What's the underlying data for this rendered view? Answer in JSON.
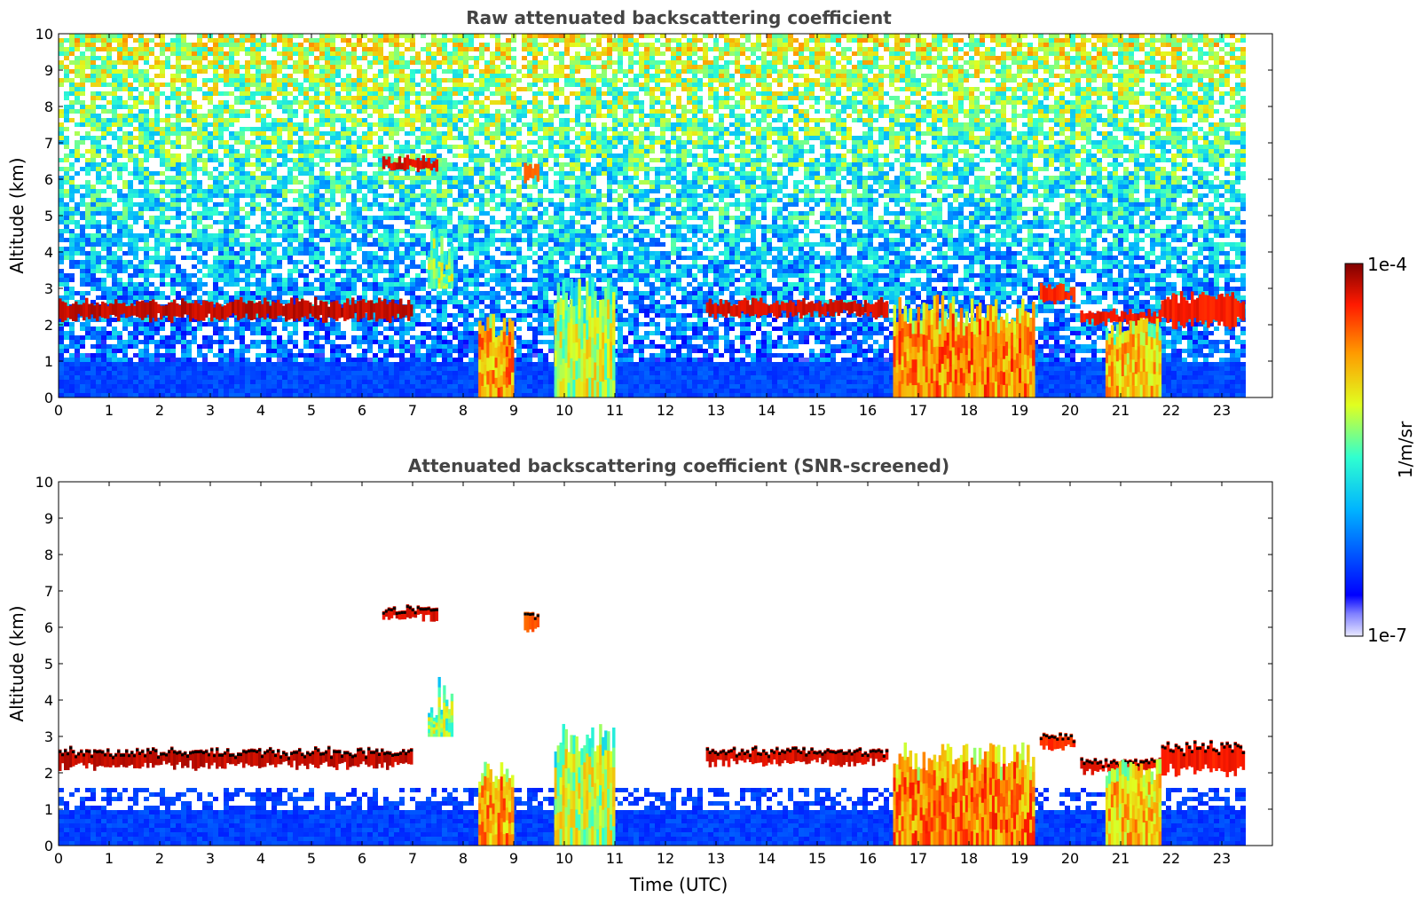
{
  "chart_data": [
    {
      "type": "heatmap",
      "title": "Raw attenuated backscattering coefficient",
      "xlabel": "",
      "ylabel": "Altitude (km)",
      "xlim": [
        0,
        24
      ],
      "ylim": [
        0,
        10
      ],
      "x_ticks": [
        0,
        1,
        2,
        3,
        4,
        5,
        6,
        7,
        8,
        9,
        10,
        11,
        12,
        13,
        14,
        15,
        16,
        17,
        18,
        19,
        20,
        21,
        22,
        23
      ],
      "y_ticks": [
        0,
        1,
        2,
        3,
        4,
        5,
        6,
        7,
        8,
        9,
        10
      ],
      "data_end_time": 23.45,
      "background": "noisy",
      "features": [
        {
          "kind": "layer",
          "t0": 0.0,
          "t1": 7.0,
          "alt0": 2.1,
          "alt1": 2.7,
          "value": 0.97
        },
        {
          "kind": "layer",
          "t0": 6.4,
          "t1": 7.5,
          "alt0": 6.2,
          "alt1": 6.6,
          "value": 0.95
        },
        {
          "kind": "layer",
          "t0": 9.2,
          "t1": 9.5,
          "alt0": 5.9,
          "alt1": 6.5,
          "value": 0.85
        },
        {
          "kind": "layer",
          "t0": 12.8,
          "t1": 16.4,
          "alt0": 2.2,
          "alt1": 2.7,
          "value": 0.95
        },
        {
          "kind": "layer",
          "t0": 19.4,
          "t1": 20.1,
          "alt0": 2.6,
          "alt1": 3.1,
          "value": 0.9
        },
        {
          "kind": "layer",
          "t0": 20.2,
          "t1": 21.8,
          "alt0": 2.0,
          "alt1": 2.4,
          "value": 0.93
        },
        {
          "kind": "layer",
          "t0": 21.8,
          "t1": 23.45,
          "alt0": 1.9,
          "alt1": 2.9,
          "value": 0.92
        },
        {
          "kind": "column",
          "t0": 8.3,
          "t1": 9.0,
          "alt0": 0.0,
          "alt1": 2.2,
          "value": 0.75
        },
        {
          "kind": "column",
          "t0": 9.8,
          "t1": 11.0,
          "alt0": 0.0,
          "alt1": 3.2,
          "value": 0.6
        },
        {
          "kind": "column",
          "t0": 16.5,
          "t1": 19.3,
          "alt0": 0.0,
          "alt1": 2.7,
          "value": 0.78
        },
        {
          "kind": "column",
          "t0": 20.7,
          "t1": 21.8,
          "alt0": 0.0,
          "alt1": 2.3,
          "value": 0.7
        },
        {
          "kind": "column",
          "t0": 7.3,
          "t1": 7.8,
          "alt0": 3.0,
          "alt1": 4.5,
          "value": 0.55
        }
      ]
    },
    {
      "type": "heatmap",
      "title": "Attenuated backscattering coefficient (SNR-screened)",
      "xlabel": "Time (UTC)",
      "ylabel": "Altitude (km)",
      "xlim": [
        0,
        24
      ],
      "ylim": [
        0,
        10
      ],
      "x_ticks": [
        0,
        1,
        2,
        3,
        4,
        5,
        6,
        7,
        8,
        9,
        10,
        11,
        12,
        13,
        14,
        15,
        16,
        17,
        18,
        19,
        20,
        21,
        22,
        23
      ],
      "y_ticks": [
        0,
        1,
        2,
        3,
        4,
        5,
        6,
        7,
        8,
        9,
        10
      ],
      "data_end_time": 23.45,
      "background": "screened",
      "features": [
        {
          "kind": "layer",
          "t0": 0.0,
          "t1": 7.0,
          "alt0": 2.1,
          "alt1": 2.7,
          "value": 0.97
        },
        {
          "kind": "layer",
          "t0": 6.4,
          "t1": 7.5,
          "alt0": 6.2,
          "alt1": 6.6,
          "value": 0.95
        },
        {
          "kind": "layer",
          "t0": 9.2,
          "t1": 9.5,
          "alt0": 5.9,
          "alt1": 6.5,
          "value": 0.85
        },
        {
          "kind": "layer",
          "t0": 12.8,
          "t1": 16.4,
          "alt0": 2.2,
          "alt1": 2.7,
          "value": 0.95
        },
        {
          "kind": "layer",
          "t0": 19.4,
          "t1": 20.1,
          "alt0": 2.6,
          "alt1": 3.1,
          "value": 0.9
        },
        {
          "kind": "layer",
          "t0": 20.2,
          "t1": 21.8,
          "alt0": 2.0,
          "alt1": 2.4,
          "value": 0.93
        },
        {
          "kind": "layer",
          "t0": 21.8,
          "t1": 23.45,
          "alt0": 1.9,
          "alt1": 2.9,
          "value": 0.92
        },
        {
          "kind": "column",
          "t0": 8.3,
          "t1": 9.0,
          "alt0": 0.0,
          "alt1": 2.2,
          "value": 0.75
        },
        {
          "kind": "column",
          "t0": 9.8,
          "t1": 11.0,
          "alt0": 0.0,
          "alt1": 3.2,
          "value": 0.6
        },
        {
          "kind": "column",
          "t0": 16.5,
          "t1": 19.3,
          "alt0": 0.0,
          "alt1": 2.7,
          "value": 0.78
        },
        {
          "kind": "column",
          "t0": 20.7,
          "t1": 21.8,
          "alt0": 0.0,
          "alt1": 2.3,
          "value": 0.7
        },
        {
          "kind": "column",
          "t0": 7.3,
          "t1": 7.8,
          "alt0": 3.0,
          "alt1": 4.5,
          "value": 0.55
        }
      ]
    }
  ],
  "colorbar": {
    "max_label": "1e-4",
    "min_label": "1e-7",
    "unit_label": "1/m/sr",
    "colormap": "jet"
  }
}
